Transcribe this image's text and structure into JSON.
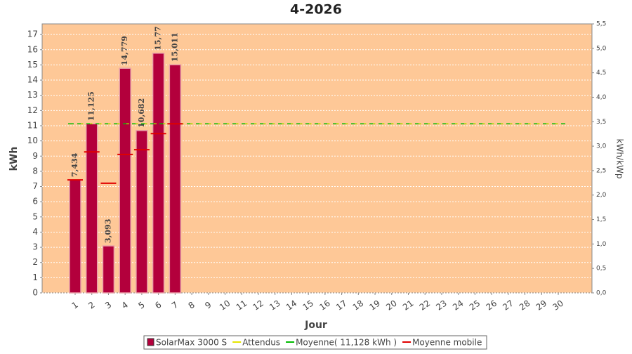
{
  "chart_data": {
    "type": "bar",
    "title": "4-2026",
    "x_label": "Jour",
    "y_label": "kWh",
    "y2_label": "kWh/kWp",
    "categories": [
      "1",
      "2",
      "3",
      "4",
      "5",
      "6",
      "7",
      "8",
      "9",
      "10",
      "11",
      "12",
      "13",
      "14",
      "15",
      "16",
      "17",
      "18",
      "19",
      "20",
      "21",
      "22",
      "23",
      "24",
      "25",
      "26",
      "27",
      "28",
      "29",
      "30"
    ],
    "series": [
      {
        "name": "SolarMax 3000 S",
        "color": "#b3003c",
        "values": [
          7.434,
          11.125,
          3.093,
          14.779,
          10.682,
          15.77,
          15.011,
          0,
          0,
          0,
          0,
          0,
          0,
          0,
          0,
          0,
          0,
          0,
          0,
          0,
          0,
          0,
          0,
          0,
          0,
          0,
          0,
          0,
          0,
          0
        ],
        "value_labels": [
          "7,434",
          "11,125",
          "3,093",
          "14,779",
          "10,682",
          "15,77",
          "15,011",
          null,
          null,
          null,
          null,
          null,
          null,
          null,
          null,
          null,
          null,
          null,
          null,
          null,
          null,
          null,
          null,
          null,
          null,
          null,
          null,
          null,
          null,
          null
        ]
      },
      {
        "name": "Attendus",
        "color": "#e6e600",
        "values": [
          11.13,
          11.13,
          11.13,
          11.13,
          11.13,
          11.13,
          11.13,
          11.13,
          11.13,
          11.13,
          11.13,
          11.13,
          11.13,
          11.13,
          11.13,
          11.13,
          11.13,
          11.13,
          11.13,
          11.13,
          11.13,
          11.13,
          11.13,
          11.13,
          11.13,
          11.13,
          11.13,
          11.13,
          11.13,
          11.13
        ]
      },
      {
        "name": "Moyenne mobile",
        "color": "#e00000",
        "values": [
          7.434,
          9.28,
          7.217,
          9.108,
          9.423,
          10.48,
          11.128,
          null,
          null,
          null,
          null,
          null,
          null,
          null,
          null,
          null,
          null,
          null,
          null,
          null,
          null,
          null,
          null,
          null,
          null,
          null,
          null,
          null,
          null,
          null
        ]
      }
    ],
    "mean": {
      "name": "Moyenne( 11,128 kWh )",
      "color": "#00bb00",
      "value": 11.128
    },
    "ylim": [
      0,
      17.7
    ],
    "yticks": [
      0,
      1,
      2,
      3,
      4,
      5,
      6,
      7,
      8,
      9,
      10,
      11,
      12,
      13,
      14,
      15,
      16,
      17
    ],
    "y2lim": [
      0,
      5.5
    ],
    "y2ticks": [
      {
        "value": 0,
        "label": "0,0"
      },
      {
        "value": 0.5,
        "label": "0,5"
      },
      {
        "value": 1,
        "label": "1,0"
      },
      {
        "value": 1.5,
        "label": "1,5"
      },
      {
        "value": 2,
        "label": "2,0"
      },
      {
        "value": 2.5,
        "label": "2,5"
      },
      {
        "value": 3,
        "label": "3,0"
      },
      {
        "value": 3.5,
        "label": "3,5"
      },
      {
        "value": 4,
        "label": "4,0"
      },
      {
        "value": 4.5,
        "label": "4,5"
      },
      {
        "value": 5,
        "label": "5,0"
      },
      {
        "value": 5.5,
        "label": "5,5"
      }
    ],
    "grid": true,
    "plot_background": "#fec897"
  }
}
